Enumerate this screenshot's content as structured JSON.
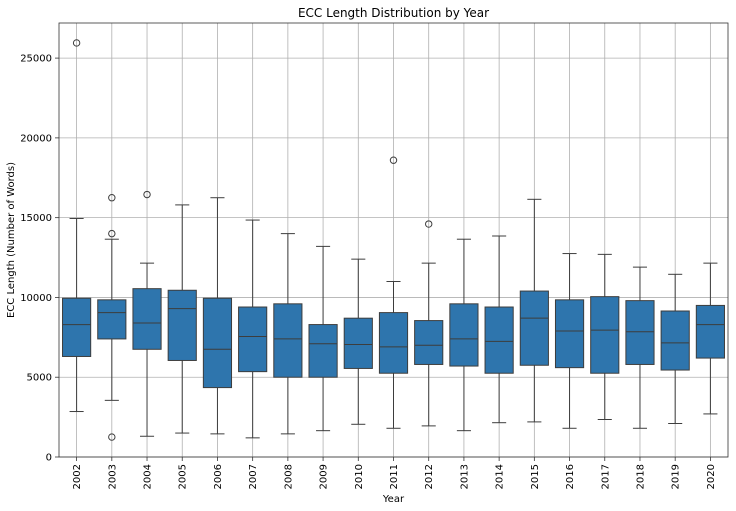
{
  "chart_data": {
    "type": "box",
    "title": "ECC Length Distribution by Year",
    "xlabel": "Year",
    "ylabel": "ECC Length (Number of Words)",
    "ylim": [
      0,
      27200
    ],
    "yticks": [
      0,
      5000,
      10000,
      15000,
      20000,
      25000
    ],
    "grid": true,
    "color": "#2e75ad",
    "categories": [
      "2002",
      "2003",
      "2004",
      "2005",
      "2006",
      "2007",
      "2008",
      "2009",
      "2010",
      "2011",
      "2012",
      "2013",
      "2014",
      "2015",
      "2016",
      "2017",
      "2018",
      "2019",
      "2020"
    ],
    "boxes": [
      {
        "whislo": 2850,
        "q1": 6300,
        "med": 8300,
        "q3": 9950,
        "whishi": 14950,
        "fliers": [
          25950
        ]
      },
      {
        "whislo": 3550,
        "q1": 7400,
        "med": 9050,
        "q3": 9850,
        "whishi": 13650,
        "fliers": [
          16250,
          14000,
          1250
        ]
      },
      {
        "whislo": 1300,
        "q1": 6750,
        "med": 8400,
        "q3": 10550,
        "whishi": 12150,
        "fliers": [
          16450
        ]
      },
      {
        "whislo": 1500,
        "q1": 6050,
        "med": 9300,
        "q3": 10450,
        "whishi": 15800,
        "fliers": []
      },
      {
        "whislo": 1450,
        "q1": 4350,
        "med": 6750,
        "q3": 9950,
        "whishi": 16250,
        "fliers": []
      },
      {
        "whislo": 1200,
        "q1": 5350,
        "med": 7550,
        "q3": 9400,
        "whishi": 14850,
        "fliers": []
      },
      {
        "whislo": 1450,
        "q1": 5000,
        "med": 7400,
        "q3": 9600,
        "whishi": 14000,
        "fliers": []
      },
      {
        "whislo": 1650,
        "q1": 5000,
        "med": 7100,
        "q3": 8300,
        "whishi": 13200,
        "fliers": []
      },
      {
        "whislo": 2050,
        "q1": 5550,
        "med": 7050,
        "q3": 8700,
        "whishi": 12400,
        "fliers": []
      },
      {
        "whislo": 1800,
        "q1": 5250,
        "med": 6900,
        "q3": 9050,
        "whishi": 11000,
        "fliers": [
          18600
        ]
      },
      {
        "whislo": 1950,
        "q1": 5800,
        "med": 7000,
        "q3": 8550,
        "whishi": 12150,
        "fliers": [
          14600
        ]
      },
      {
        "whislo": 1650,
        "q1": 5700,
        "med": 7400,
        "q3": 9600,
        "whishi": 13650,
        "fliers": []
      },
      {
        "whislo": 2150,
        "q1": 5250,
        "med": 7250,
        "q3": 9400,
        "whishi": 13850,
        "fliers": []
      },
      {
        "whislo": 2200,
        "q1": 5750,
        "med": 8700,
        "q3": 10400,
        "whishi": 16150,
        "fliers": []
      },
      {
        "whislo": 1800,
        "q1": 5600,
        "med": 7900,
        "q3": 9850,
        "whishi": 12750,
        "fliers": []
      },
      {
        "whislo": 2350,
        "q1": 5250,
        "med": 7950,
        "q3": 10050,
        "whishi": 12700,
        "fliers": []
      },
      {
        "whislo": 1800,
        "q1": 5800,
        "med": 7850,
        "q3": 9800,
        "whishi": 11900,
        "fliers": []
      },
      {
        "whislo": 2100,
        "q1": 5450,
        "med": 7150,
        "q3": 9150,
        "whishi": 11450,
        "fliers": []
      },
      {
        "whislo": 2700,
        "q1": 6200,
        "med": 8300,
        "q3": 9500,
        "whishi": 12150,
        "fliers": []
      }
    ]
  }
}
